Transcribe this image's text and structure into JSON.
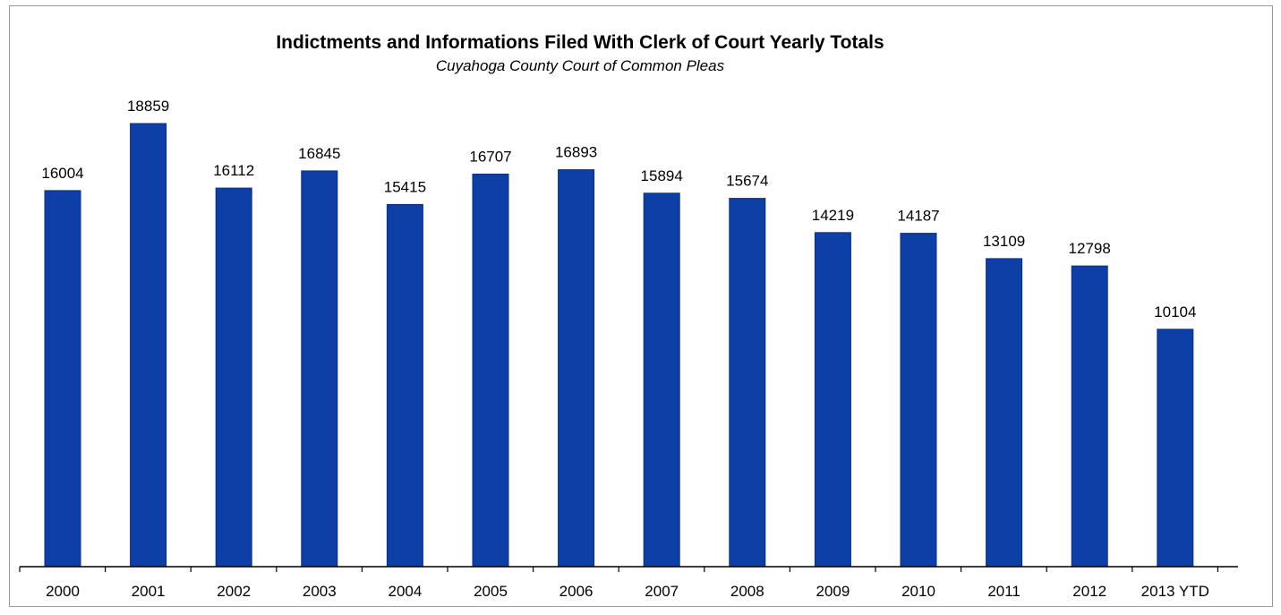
{
  "chart_data": {
    "type": "bar",
    "title": "Indictments and Informations Filed With Clerk of Court Yearly Totals",
    "subtitle": "Cuyahoga County Court of Common Pleas",
    "xlabel": "",
    "ylabel": "",
    "categories": [
      "2000",
      "2001",
      "2002",
      "2003",
      "2004",
      "2005",
      "2006",
      "2007",
      "2008",
      "2009",
      "2010",
      "2011",
      "2012",
      "2013 YTD"
    ],
    "values": [
      16004,
      18859,
      16112,
      16845,
      15415,
      16707,
      16893,
      15894,
      15674,
      14219,
      14187,
      13109,
      12798,
      10104
    ],
    "data_labels": [
      "16004",
      "18859",
      "16112",
      "16845",
      "15415",
      "16707",
      "16893",
      "15894",
      "15674",
      "14219",
      "14187",
      "13109",
      "12798",
      "10104"
    ],
    "ylim": [
      0,
      18859
    ],
    "grid": false,
    "legend": "none",
    "bar_color": "#0d3fa6"
  }
}
